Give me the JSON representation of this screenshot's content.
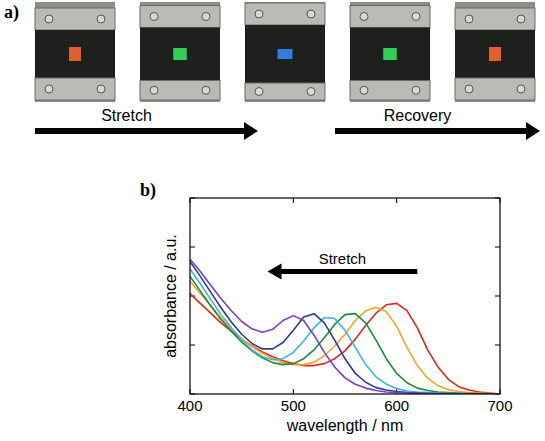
{
  "photo_panel": {
    "label": "a)",
    "photos": [
      {
        "color": "#e0602a"
      },
      {
        "color": "#2fcf5a"
      },
      {
        "color": "#2f7fe0"
      },
      {
        "color": "#2fcf5a"
      },
      {
        "color": "#e0602a"
      }
    ],
    "arrows": [
      "Stretch",
      "Recovery"
    ]
  },
  "chart_data": {
    "type": "line",
    "panel_label": "b)",
    "annotation": "Stretch",
    "x_label": "wavelength / nm",
    "y_label": "absorbance / a.u.",
    "x": [
      400,
      410,
      420,
      430,
      440,
      450,
      460,
      470,
      480,
      490,
      500,
      510,
      520,
      530,
      540,
      550,
      560,
      570,
      580,
      590,
      600,
      610,
      620,
      630,
      640,
      650,
      660,
      670,
      680,
      690,
      700
    ],
    "xlim": [
      400,
      700
    ],
    "xticks": [
      400,
      500,
      600,
      700
    ],
    "ylim": [
      0,
      4
    ],
    "yticks": [
      0,
      1,
      2,
      3,
      4
    ],
    "tick_labels": "x",
    "series": [
      {
        "color": "#e8231e",
        "values": [
          2.05,
          1.85,
          1.65,
          1.45,
          1.28,
          1.12,
          0.98,
          0.86,
          0.76,
          0.68,
          0.62,
          0.58,
          0.58,
          0.62,
          0.72,
          0.88,
          1.12,
          1.4,
          1.65,
          1.82,
          1.85,
          1.7,
          1.35,
          0.9,
          0.55,
          0.3,
          0.15,
          0.08,
          0.04,
          0.02,
          0
        ]
      },
      {
        "color": "#f5a623",
        "values": [
          2.3,
          2.05,
          1.8,
          1.55,
          1.33,
          1.13,
          0.97,
          0.83,
          0.72,
          0.64,
          0.6,
          0.6,
          0.65,
          0.78,
          0.98,
          1.22,
          1.5,
          1.7,
          1.77,
          1.68,
          1.38,
          0.95,
          0.58,
          0.32,
          0.17,
          0.09,
          0.05,
          0.03,
          0.02,
          0.01,
          0
        ]
      },
      {
        "color": "#1a8f3a",
        "values": [
          2.4,
          2.1,
          1.8,
          1.52,
          1.28,
          1.06,
          0.88,
          0.74,
          0.64,
          0.6,
          0.62,
          0.72,
          0.9,
          1.15,
          1.42,
          1.62,
          1.64,
          1.45,
          1.1,
          0.72,
          0.42,
          0.23,
          0.12,
          0.07,
          0.04,
          0.03,
          0.02,
          0.01,
          0.01,
          0,
          0
        ]
      },
      {
        "color": "#3bb7e0",
        "values": [
          2.55,
          2.25,
          1.93,
          1.62,
          1.35,
          1.1,
          0.9,
          0.76,
          0.7,
          0.72,
          0.85,
          1.08,
          1.35,
          1.56,
          1.54,
          1.3,
          0.95,
          0.6,
          0.35,
          0.2,
          0.11,
          0.06,
          0.04,
          0.03,
          0.02,
          0.01,
          0.01,
          0,
          0,
          0,
          0
        ]
      },
      {
        "color": "#2e3a9a",
        "values": [
          2.7,
          2.4,
          2.08,
          1.76,
          1.47,
          1.22,
          1.03,
          0.92,
          0.92,
          1.05,
          1.3,
          1.57,
          1.64,
          1.45,
          1.1,
          0.72,
          0.42,
          0.24,
          0.13,
          0.08,
          0.05,
          0.03,
          0.02,
          0.01,
          0.01,
          0,
          0,
          0,
          0,
          0,
          0
        ]
      },
      {
        "color": "#7a3fc0",
        "values": [
          2.75,
          2.5,
          2.22,
          1.95,
          1.7,
          1.48,
          1.33,
          1.26,
          1.32,
          1.5,
          1.6,
          1.5,
          1.2,
          0.85,
          0.55,
          0.33,
          0.2,
          0.12,
          0.07,
          0.04,
          0.03,
          0.02,
          0.01,
          0.01,
          0,
          0,
          0,
          0,
          0,
          0,
          0
        ]
      }
    ]
  }
}
